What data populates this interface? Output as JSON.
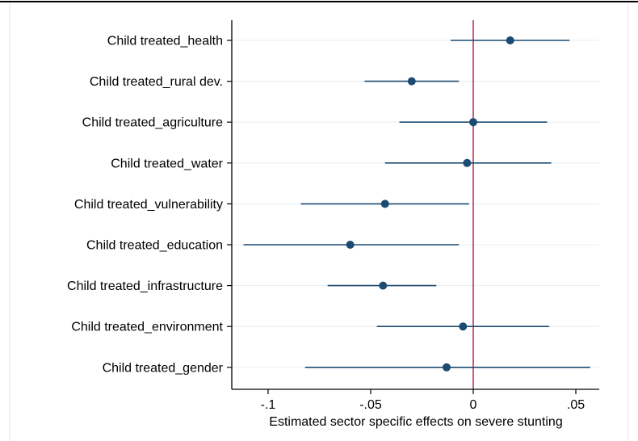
{
  "chart_data": {
    "type": "scatter",
    "subtype": "coefficient-plot-horizontal",
    "title": "",
    "xlabel": "Estimated sector specific effects on severe stunting",
    "ylabel": "",
    "xlim": [
      -0.115,
      0.06
    ],
    "xticks": [
      -0.1,
      -0.05,
      0,
      0.05
    ],
    "xtick_labels": [
      "-.1",
      "-.05",
      "0",
      ".05"
    ],
    "reference_line": {
      "x": 0,
      "color": "#b0173e"
    },
    "grid": "horizontal",
    "colors": {
      "marker": "#1b4a72",
      "ci": "#1b4a72",
      "grid": "#e8edf1",
      "reference": "#b0173e"
    },
    "categories": [
      "Child treated_health",
      "Child treated_rural dev.",
      "Child treated_agriculture",
      "Child treated_water",
      "Child treated_vulnerability",
      "Child treated_education",
      "Child treated_infrastructure",
      "Child treated_environment",
      "Child treated_gender"
    ],
    "series": [
      {
        "estimate": [
          0.018,
          -0.03,
          0.0,
          -0.003,
          -0.043,
          -0.06,
          -0.044,
          -0.005,
          -0.013
        ],
        "ci_low": [
          -0.011,
          -0.053,
          -0.036,
          -0.043,
          -0.084,
          -0.112,
          -0.071,
          -0.047,
          -0.082
        ],
        "ci_high": [
          0.047,
          -0.007,
          0.036,
          0.038,
          -0.002,
          -0.007,
          -0.018,
          0.037,
          0.057
        ]
      }
    ]
  }
}
